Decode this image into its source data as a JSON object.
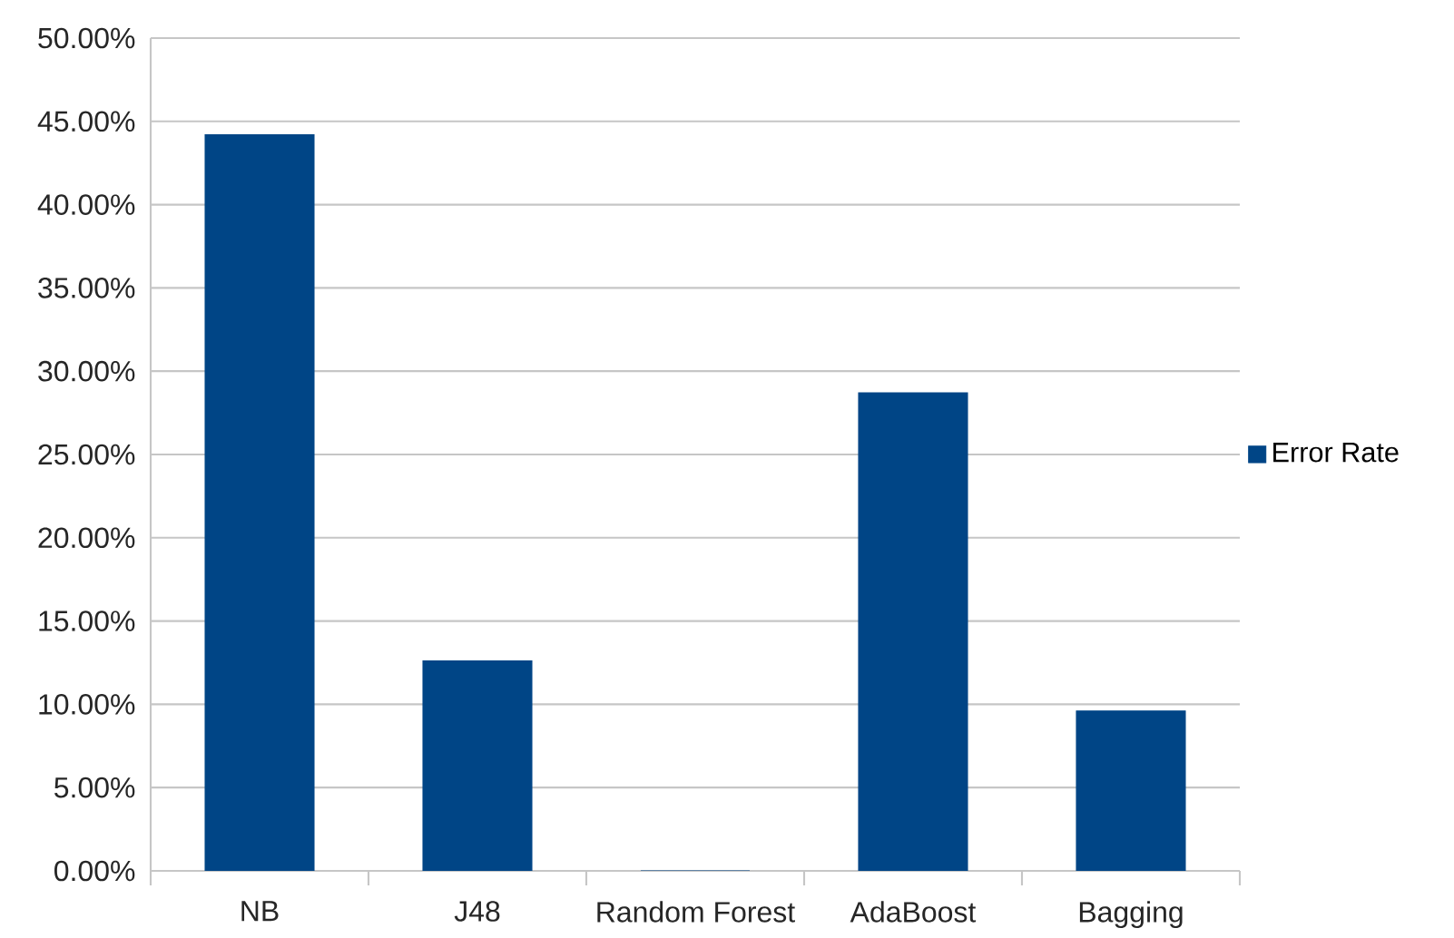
{
  "chart_data": {
    "type": "bar",
    "categories": [
      "NB",
      "J48",
      "Random Forest",
      "AdaBoost",
      "Bagging"
    ],
    "series": [
      {
        "name": "Error Rate",
        "color": "#004586",
        "values": [
          44.2,
          12.6,
          0,
          28.7,
          9.6
        ]
      }
    ],
    "ylim": [
      0,
      50
    ],
    "yticks": [
      {
        "value": 0,
        "label": "0.00%"
      },
      {
        "value": 5,
        "label": "5.00%"
      },
      {
        "value": 10,
        "label": "10.00%"
      },
      {
        "value": 15,
        "label": "15.00%"
      },
      {
        "value": 20,
        "label": "20.00%"
      },
      {
        "value": 25,
        "label": "25.00%"
      },
      {
        "value": 30,
        "label": "30.00%"
      },
      {
        "value": 35,
        "label": "35.00%"
      },
      {
        "value": 40,
        "label": "40.00%"
      },
      {
        "value": 45,
        "label": "45.00%"
      },
      {
        "value": 50,
        "label": "50.00%"
      }
    ],
    "grid": "y",
    "legend": "right"
  }
}
